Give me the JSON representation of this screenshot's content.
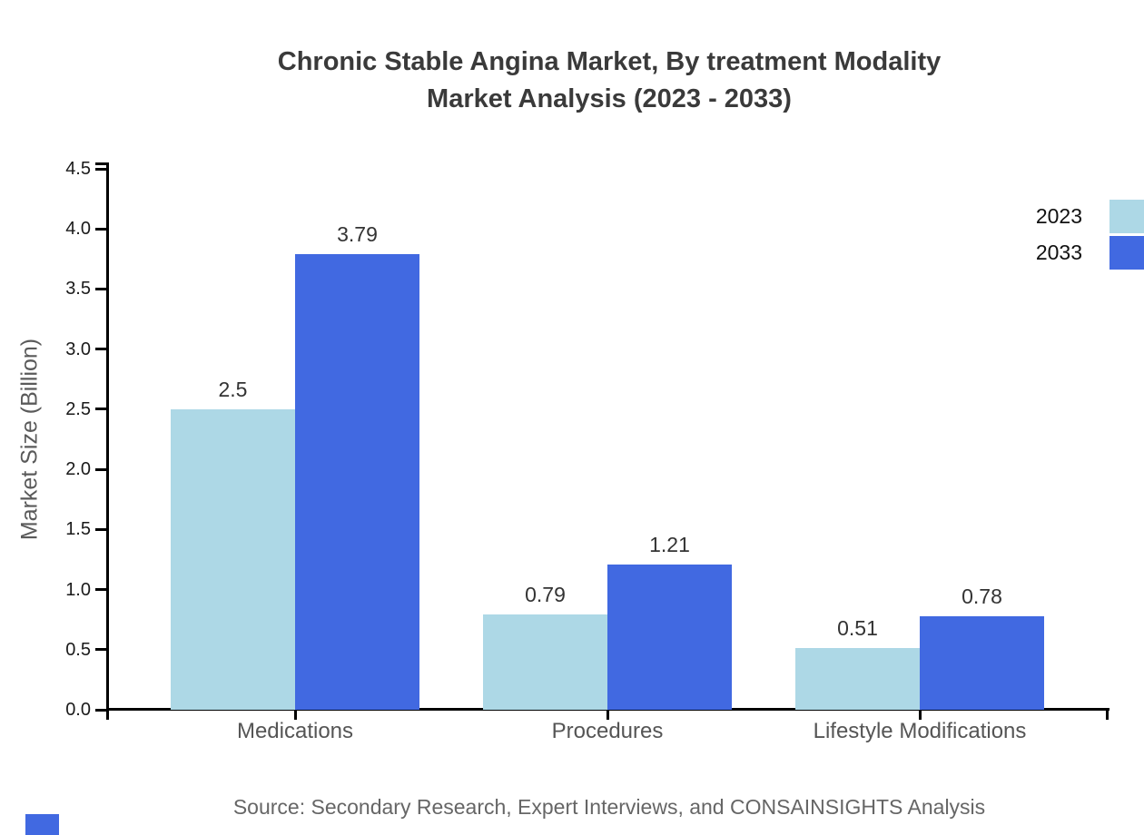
{
  "title": {
    "line1": "Chronic Stable Angina Market, By treatment Modality",
    "line2": "Market Analysis (2023 - 2033)"
  },
  "y_axis": {
    "label": "Market Size (Billion)",
    "ticks": [
      "0.0",
      "0.5",
      "1.0",
      "1.5",
      "2.0",
      "2.5",
      "3.0",
      "3.5",
      "4.0",
      "4.5"
    ]
  },
  "legend": {
    "items": [
      {
        "label": "2023",
        "color": "#add8e6"
      },
      {
        "label": "2033",
        "color": "#4169e1"
      }
    ]
  },
  "footer": {
    "source": "Source: Secondary Research, Expert Interviews, and CONSAINSIGHTS Analysis"
  },
  "chart_data": {
    "type": "bar",
    "title": "Chronic Stable Angina Market, By treatment Modality Market Analysis (2023 - 2033)",
    "categories": [
      "Medications",
      "Procedures",
      "Lifestyle Modifications"
    ],
    "series": [
      {
        "name": "2023",
        "color": "#add8e6",
        "values": [
          2.5,
          0.79,
          0.51
        ],
        "data_labels": [
          "2.5",
          "0.79",
          "0.51"
        ]
      },
      {
        "name": "2033",
        "color": "#4169e1",
        "values": [
          3.79,
          1.21,
          0.78
        ],
        "data_labels": [
          "3.79",
          "1.21",
          "0.78"
        ]
      }
    ],
    "xlabel": "",
    "ylabel": "Market Size (Billion)",
    "ylim": [
      0,
      4.5
    ],
    "ytick_step": 0.5,
    "grid": false,
    "legend_position": "top-right"
  },
  "colors": {
    "bar_2023": "#add8e6",
    "bar_2033": "#4169e1",
    "axis_line": "#000000",
    "title_text": "#3a3a3a",
    "tick_label_text": "#1a1a1a",
    "value_label_text": "#333333",
    "category_label_text": "#555555",
    "y_axis_label_text": "#5a5a5a",
    "source_text": "#666666",
    "watermark_blue": "#4169e1"
  }
}
